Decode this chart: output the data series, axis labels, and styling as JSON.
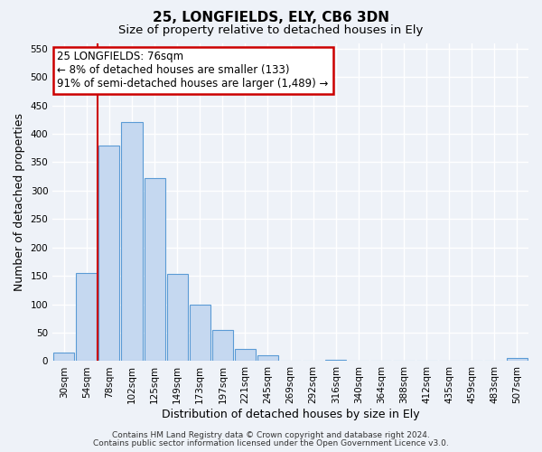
{
  "title": "25, LONGFIELDS, ELY, CB6 3DN",
  "subtitle": "Size of property relative to detached houses in Ely",
  "xlabel": "Distribution of detached houses by size in Ely",
  "ylabel": "Number of detached properties",
  "bin_labels": [
    "30sqm",
    "54sqm",
    "78sqm",
    "102sqm",
    "125sqm",
    "149sqm",
    "173sqm",
    "197sqm",
    "221sqm",
    "245sqm",
    "269sqm",
    "292sqm",
    "316sqm",
    "340sqm",
    "364sqm",
    "388sqm",
    "412sqm",
    "435sqm",
    "459sqm",
    "483sqm",
    "507sqm"
  ],
  "bar_values": [
    15,
    155,
    380,
    420,
    322,
    153,
    100,
    55,
    22,
    10,
    0,
    0,
    2,
    0,
    0,
    0,
    0,
    0,
    0,
    0,
    5
  ],
  "bar_color": "#c5d8f0",
  "bar_edgecolor": "#5b9bd5",
  "vline_x_index": 2,
  "vline_color": "#cc0000",
  "annotation_line1": "25 LONGFIELDS: 76sqm",
  "annotation_line2": "← 8% of detached houses are smaller (133)",
  "annotation_line3": "91% of semi-detached houses are larger (1,489) →",
  "ylim": [
    0,
    560
  ],
  "yticks": [
    0,
    50,
    100,
    150,
    200,
    250,
    300,
    350,
    400,
    450,
    500,
    550
  ],
  "footer_line1": "Contains HM Land Registry data © Crown copyright and database right 2024.",
  "footer_line2": "Contains public sector information licensed under the Open Government Licence v3.0.",
  "background_color": "#eef2f8",
  "grid_color": "#ffffff",
  "title_fontsize": 11,
  "subtitle_fontsize": 9.5,
  "axis_label_fontsize": 9,
  "tick_fontsize": 7.5,
  "footer_fontsize": 6.5,
  "annotation_fontsize": 8.5
}
